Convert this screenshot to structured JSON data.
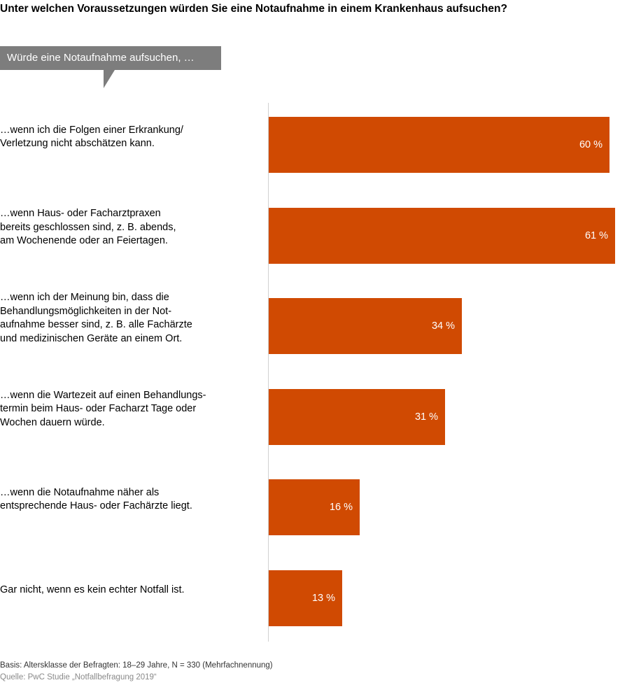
{
  "title": "Unter welchen Voraussetzungen würden Sie eine Notaufnahme in einem Krankenhaus aufsuchen?",
  "callout": "Würde eine Notaufnahme aufsuchen, …",
  "colors": {
    "bar": "#d04a02",
    "callout": "#7d7d7d",
    "axis": "#d0d0d0"
  },
  "chart_data": {
    "type": "bar",
    "orientation": "horizontal",
    "title": "Unter welchen Voraussetzungen würden Sie eine Notaufnahme in einem Krankenhaus aufsuchen?",
    "unit": "%",
    "categories": [
      "…wenn ich die Folgen einer Erkrankung/\nVerletzung nicht abschätzen kann.",
      "…wenn Haus- oder Facharztpraxen\nbereits geschlossen sind, z. B. abends,\nam Wochenende oder an Feiertagen.",
      "…wenn ich der Meinung bin, dass die\nBehandlungsmöglichkeiten in der Not-\naufnahme besser sind, z. B. alle Fachärzte\nund medizinischen Geräte an einem Ort.",
      "…wenn die Wartezeit auf einen Behandlungs-\ntermin beim Haus- oder Facharzt Tage oder\nWochen dauern würde.",
      "…wenn die Notaufnahme näher als\nentsprechende Haus- oder Fachärzte liegt.",
      "Gar nicht, wenn es kein echter Notfall ist."
    ],
    "values": [
      60,
      61,
      34,
      31,
      16,
      13
    ],
    "value_labels": [
      "60 %",
      "61 %",
      "34 %",
      "31 %",
      "16 %",
      "13 %"
    ],
    "xlim": [
      0,
      61
    ],
    "grid": false,
    "legend": "none"
  },
  "footnotes": {
    "basis": "Basis: Altersklasse der Befragten: 18–29 Jahre, N = 330 (Mehrfachnennung)",
    "source": "Quelle: PwC Studie „Notfallbefragung 2019“"
  }
}
